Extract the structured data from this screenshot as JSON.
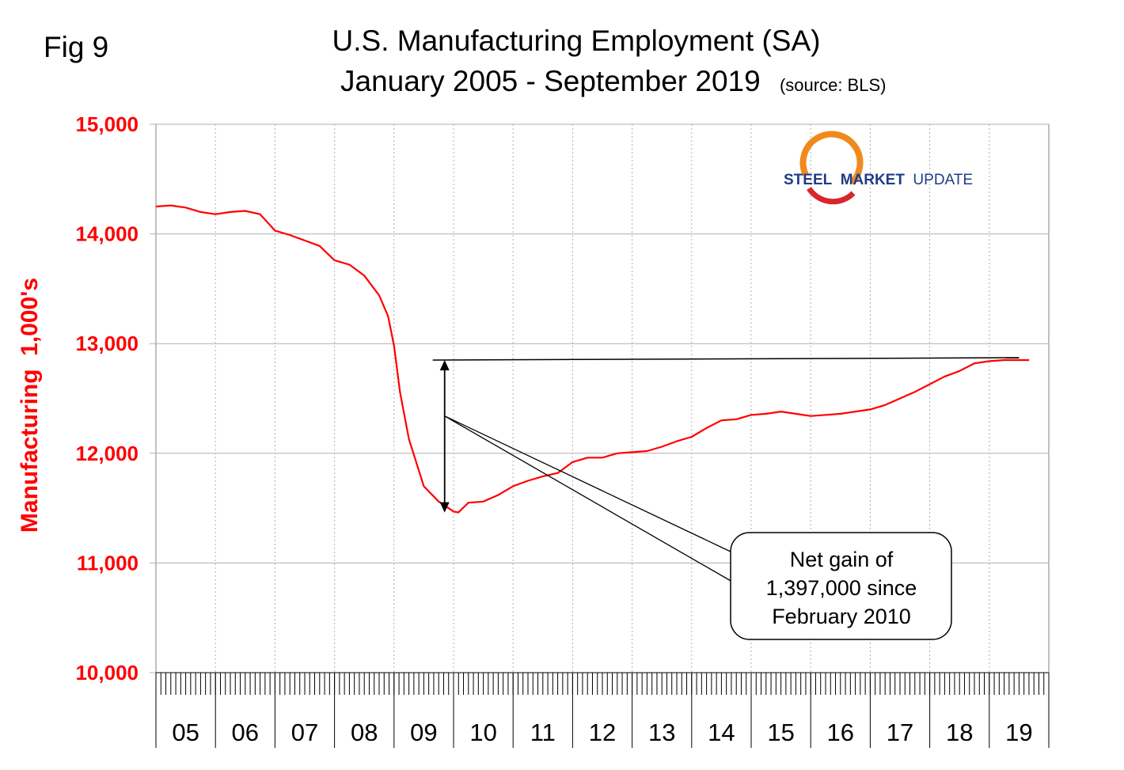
{
  "figure_label": "Fig 9",
  "logo": {
    "word1": "STEEL",
    "word2": "MARKET",
    "word3": "UPDATE"
  },
  "callout": {
    "lines": [
      "Net gain of",
      "1,397,000 since",
      "February 2010"
    ]
  },
  "colors": {
    "series": "#ff0000",
    "axis_labels": "#ff0000",
    "grid": "#b0b0b0",
    "annotation": "#000000"
  },
  "chart_data": {
    "type": "line",
    "title": "U.S. Manufacturing Employment (SA)",
    "subtitle": "January 2005 - September 2019",
    "source_note": "(source: BLS)",
    "xlabel": "",
    "ylabel": "Manufacturing  1,000's",
    "ylim": [
      10000,
      15000
    ],
    "yticks": [
      10000,
      11000,
      12000,
      13000,
      14000,
      15000
    ],
    "ytick_labels": [
      "10,000",
      "11,000",
      "12,000",
      "13,000",
      "14,000",
      "15,000"
    ],
    "xlim": [
      2005,
      2020
    ],
    "year_labels": [
      "05",
      "06",
      "07",
      "08",
      "09",
      "10",
      "11",
      "12",
      "13",
      "14",
      "15",
      "16",
      "17",
      "18",
      "19"
    ],
    "grid": true,
    "series": [
      {
        "x": [
          2005.0,
          2005.25,
          2005.5,
          2005.75,
          2006.0,
          2006.25,
          2006.5,
          2006.75,
          2007.0,
          2007.25,
          2007.5,
          2007.75,
          2008.0,
          2008.25,
          2008.5,
          2008.75,
          2008.9,
          2009.0,
          2009.1,
          2009.25,
          2009.5,
          2009.75,
          2010.0,
          2010.08,
          2010.25,
          2010.5,
          2010.75,
          2011.0,
          2011.25,
          2011.5,
          2011.75,
          2012.0,
          2012.25,
          2012.5,
          2012.75,
          2013.0,
          2013.25,
          2013.5,
          2013.75,
          2014.0,
          2014.25,
          2014.5,
          2014.75,
          2015.0,
          2015.25,
          2015.5,
          2015.75,
          2016.0,
          2016.25,
          2016.5,
          2016.75,
          2017.0,
          2017.25,
          2017.5,
          2017.75,
          2018.0,
          2018.25,
          2018.5,
          2018.75,
          2019.0,
          2019.25,
          2019.5,
          2019.67
        ],
        "values": [
          14250,
          14260,
          14240,
          14200,
          14180,
          14200,
          14210,
          14180,
          14030,
          13990,
          13940,
          13890,
          13760,
          13720,
          13620,
          13440,
          13250,
          12980,
          12560,
          12130,
          11700,
          11560,
          11470,
          11460,
          11550,
          11560,
          11620,
          11700,
          11750,
          11790,
          11820,
          11920,
          11960,
          11960,
          12000,
          12010,
          12020,
          12060,
          12110,
          12150,
          12230,
          12300,
          12310,
          12350,
          12360,
          12380,
          12360,
          12340,
          12350,
          12360,
          12380,
          12400,
          12440,
          12500,
          12560,
          12630,
          12700,
          12750,
          12820,
          12840,
          12850,
          12850,
          12850
        ]
      }
    ],
    "annotations": {
      "reference_line": {
        "x0": 2009.65,
        "x1": 2019.5,
        "y": 12850
      },
      "gain_arrow": {
        "x": 2009.85,
        "y_low": 11460,
        "y_high": 12850
      },
      "pointer_origin": {
        "x": 2009.85,
        "y": 12340
      }
    }
  }
}
